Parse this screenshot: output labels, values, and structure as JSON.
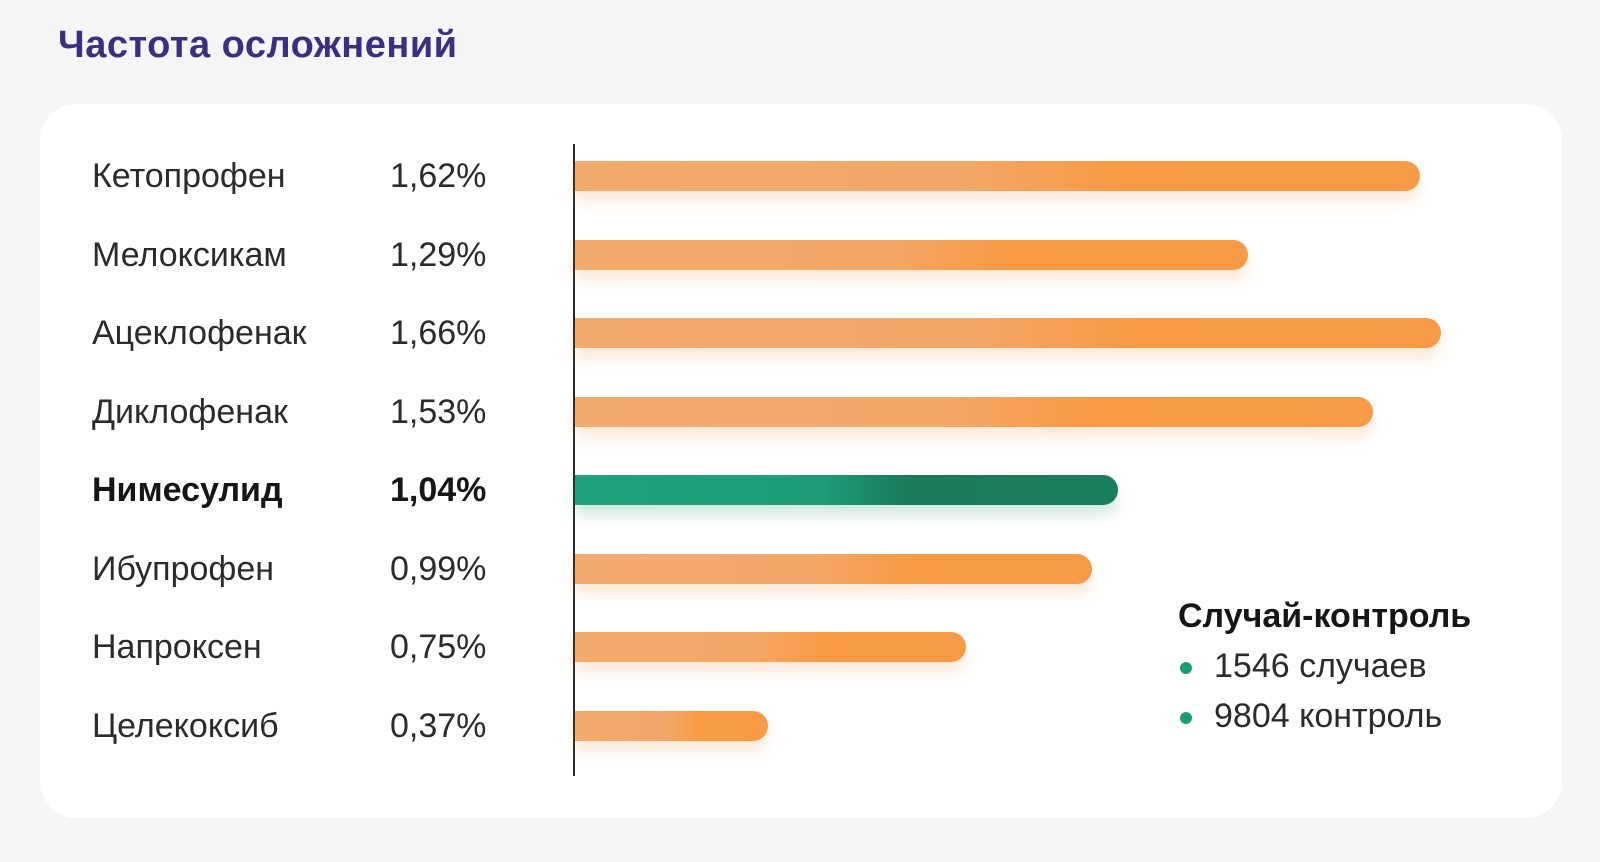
{
  "title": "Частота осложнений",
  "colors": {
    "title": "#3d2e83",
    "bar_default": "#f79a43",
    "bar_highlight": "#1b7e5e",
    "legend_dot": "#1b9c77"
  },
  "chart_data": {
    "type": "bar",
    "orientation": "horizontal",
    "categories": [
      "Кетопрофен",
      "Мелоксикам",
      "Ацеклофенак",
      "Диклофенак",
      "Нимесулид",
      "Ибупрофен",
      "Напроксен",
      "Целекоксиб"
    ],
    "values": [
      1.62,
      1.29,
      1.66,
      1.53,
      1.04,
      0.99,
      0.75,
      0.37
    ],
    "value_labels": [
      "1,62%",
      "1,29%",
      "1,66%",
      "1,53%",
      "1,04%",
      "0,99%",
      "0,75%",
      "0,37%"
    ],
    "highlight_index": 4,
    "xlim": [
      0,
      1.7
    ],
    "grid": false
  },
  "legend": {
    "title": "Случай-контроль",
    "items": [
      "1546 случаев",
      "9804 контроль"
    ]
  }
}
